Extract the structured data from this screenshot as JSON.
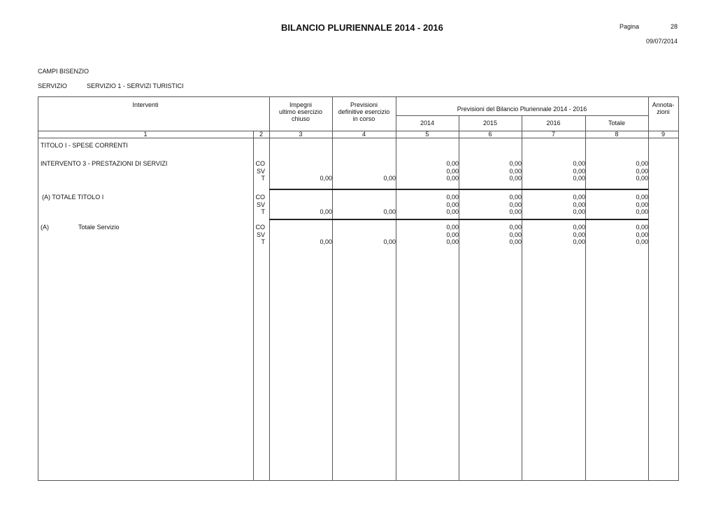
{
  "header": {
    "title": "BILANCIO PLURIENNALE 2014 - 2016",
    "page_label": "Pagina",
    "page_number": "28",
    "date": "09/07/2014"
  },
  "entity": "CAMPI BISENZIO",
  "servizio": {
    "label": "SERVIZIO",
    "value": "SERVIZIO 1 - SERVIZI TURISTICI"
  },
  "table": {
    "headers": {
      "interventi": "Interventi",
      "impegni": [
        "Impegni",
        "ultimo esercizio",
        "chiuso"
      ],
      "previsioni_def": [
        "Previsioni",
        "definitive esercizio",
        "in corso"
      ],
      "previsioni_group": "Previsioni del Bilancio Pluriennale 2014 - 2016",
      "years": [
        "2014",
        "2015",
        "2016",
        "Totale"
      ],
      "annotazioni": [
        "Annota-",
        "zioni"
      ],
      "numbers": [
        "1",
        "2",
        "3",
        "4",
        "5",
        "6",
        "7",
        "8",
        "9"
      ]
    },
    "section_title": "TITOLO I - SPESE CORRENTI",
    "groups": [
      {
        "label": "INTERVENTO 3 - PRESTAZIONI DI SERVIZI",
        "label2": "",
        "rows": [
          {
            "code": "CO",
            "c3": "",
            "c4": "",
            "c5": "0,00",
            "c6": "0,00",
            "c7": "0,00",
            "c8": "0,00"
          },
          {
            "code": "SV",
            "c3": "",
            "c4": "",
            "c5": "0,00",
            "c6": "0,00",
            "c7": "0,00",
            "c8": "0,00"
          },
          {
            "code": "T",
            "c3": "0,00",
            "c4": "0,00",
            "c5": "0,00",
            "c6": "0,00",
            "c7": "0,00",
            "c8": "0,00"
          }
        ]
      },
      {
        "label": "(A) TOTALE TITOLO I",
        "label2": "",
        "rows": [
          {
            "code": "CO",
            "c3": "",
            "c4": "",
            "c5": "0,00",
            "c6": "0,00",
            "c7": "0,00",
            "c8": "0,00"
          },
          {
            "code": "SV",
            "c3": "",
            "c4": "",
            "c5": "0,00",
            "c6": "0,00",
            "c7": "0,00",
            "c8": "0,00"
          },
          {
            "code": "T",
            "c3": "0,00",
            "c4": "0,00",
            "c5": "0,00",
            "c6": "0,00",
            "c7": "0,00",
            "c8": "0,00"
          }
        ]
      },
      {
        "label": "(A)",
        "label2": "Totale Servizio",
        "rows": [
          {
            "code": "CO",
            "c3": "",
            "c4": "",
            "c5": "0,00",
            "c6": "0,00",
            "c7": "0,00",
            "c8": "0,00"
          },
          {
            "code": "SV",
            "c3": "",
            "c4": "",
            "c5": "0,00",
            "c6": "0,00",
            "c7": "0,00",
            "c8": "0,00"
          },
          {
            "code": "T",
            "c3": "0,00",
            "c4": "0,00",
            "c5": "0,00",
            "c6": "0,00",
            "c7": "0,00",
            "c8": "0,00"
          }
        ]
      }
    ]
  }
}
